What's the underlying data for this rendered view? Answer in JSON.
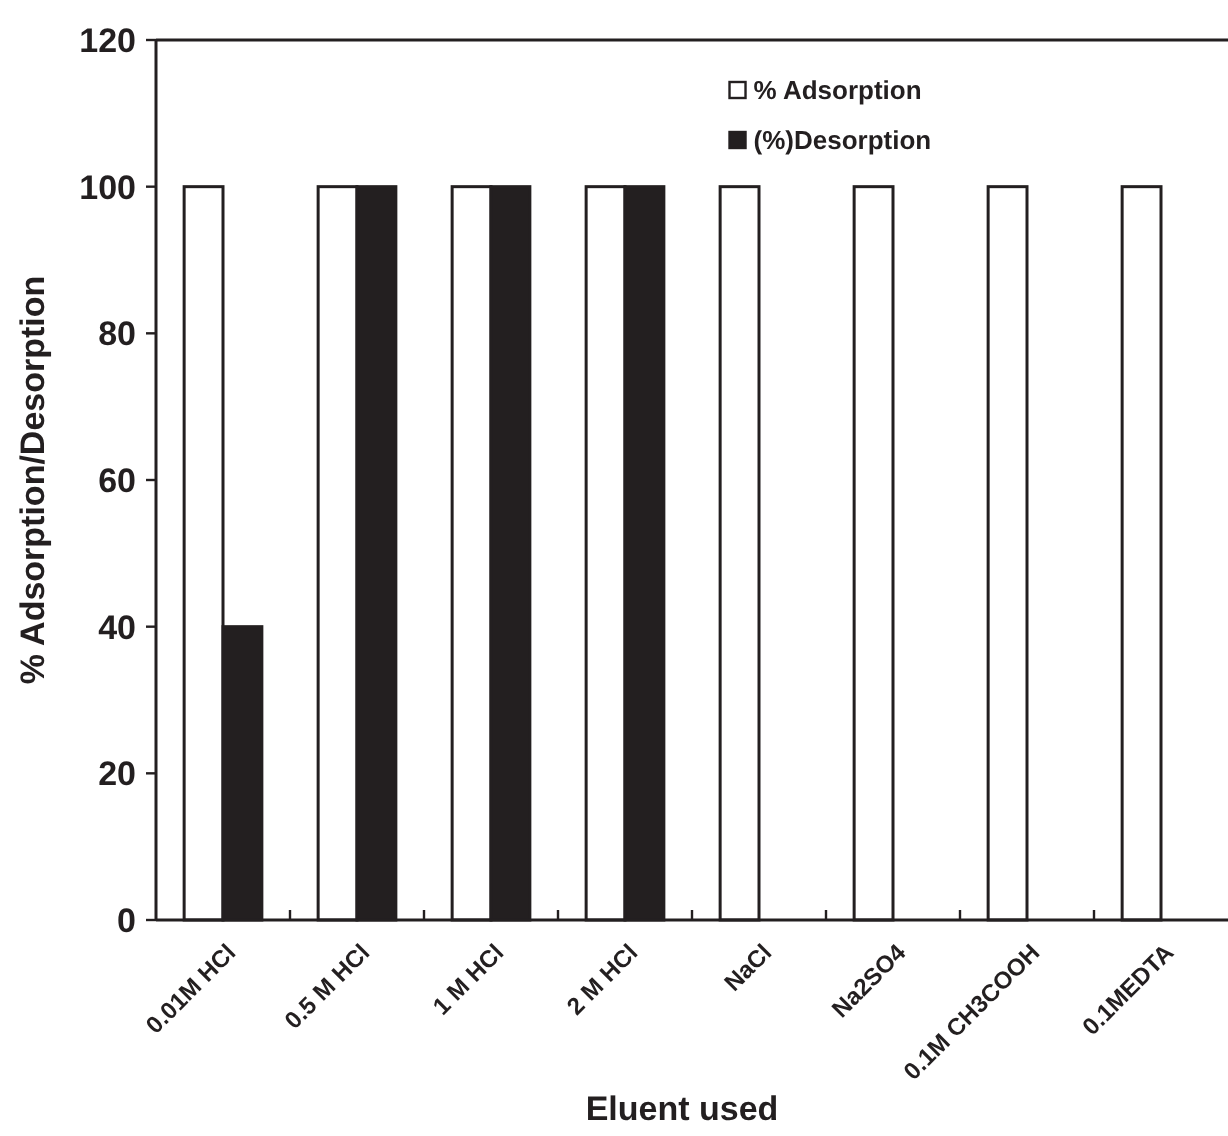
{
  "chart_data": {
    "type": "bar",
    "xlabel": "Eluent used",
    "ylabel": "% Adsorption/Desorption",
    "categories": [
      "0.01M HCl",
      "0.5 M HCl",
      "1 M HCl",
      "2 M HCl",
      "NaCl",
      "Na2SO4",
      "0.1M CH3COOH",
      "0.1MEDTA"
    ],
    "series": [
      {
        "name": "% Adsorption",
        "color": "#ffffff",
        "values": [
          100,
          100,
          100,
          100,
          100,
          100,
          100,
          100
        ]
      },
      {
        "name": "(%)Desorption",
        "color": "#231f20",
        "values": [
          40,
          100,
          100,
          100,
          0,
          0,
          0,
          0
        ]
      }
    ],
    "ylim": [
      0,
      120
    ],
    "yticks": [
      0,
      20,
      40,
      60,
      80,
      100,
      120
    ],
    "legend": "top right"
  }
}
